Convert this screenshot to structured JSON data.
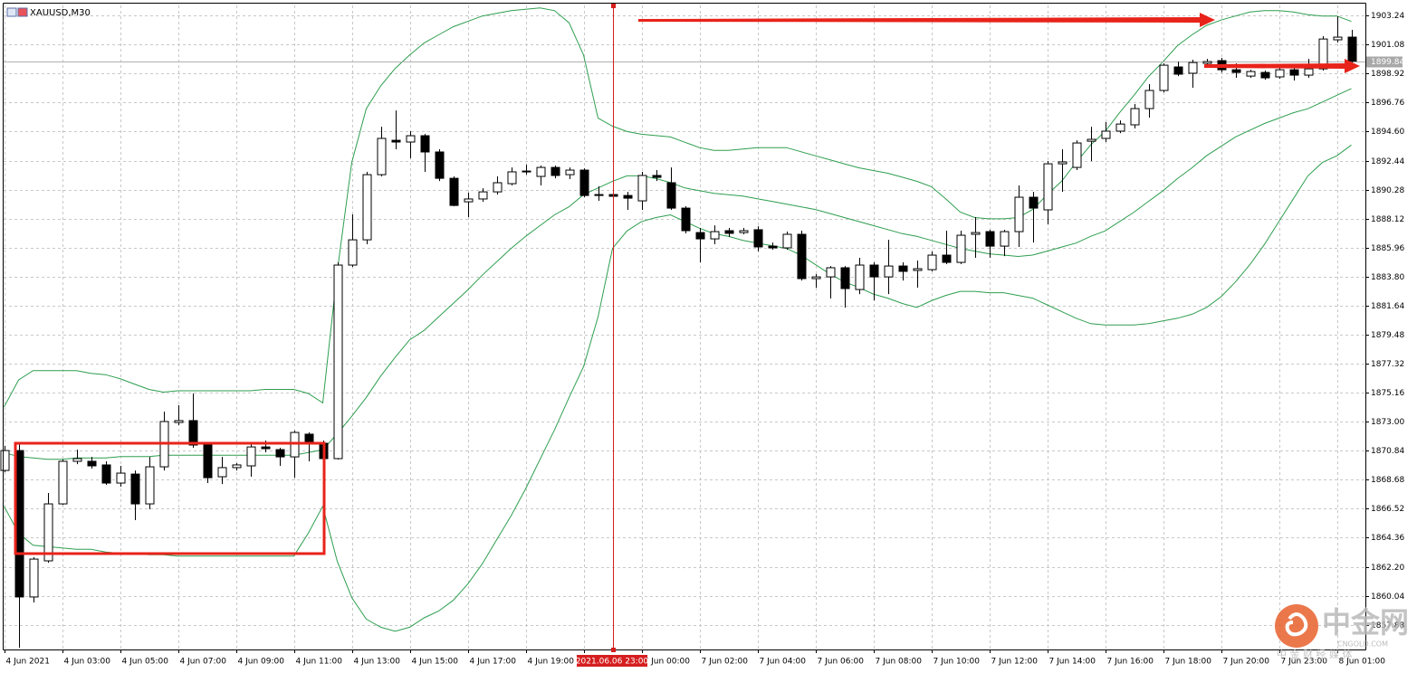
{
  "chart_data": {
    "type": "candlestick",
    "title": "XAUUSD,M30",
    "categories": [
      "4 Jun 2021",
      null,
      null,
      null,
      "4 Jun 03:00",
      null,
      null,
      null,
      "4 Jun 05:00",
      null,
      null,
      null,
      "4 Jun 07:00",
      null,
      null,
      null,
      "4 Jun 09:00",
      null,
      null,
      null,
      "4 Jun 11:00",
      null,
      null,
      null,
      "4 Jun 13:00",
      null,
      null,
      null,
      "4 Jun 15:00",
      null,
      null,
      null,
      "4 Jun 17:00",
      null,
      null,
      null,
      "4 Jun 19:00",
      null,
      null,
      null,
      null,
      null,
      null,
      null,
      "7 Jun 00:00",
      null,
      null,
      null,
      "7 Jun 02:00",
      null,
      null,
      null,
      "7 Jun 04:00",
      null,
      null,
      null,
      "7 Jun 06:00",
      null,
      null,
      null,
      "7 Jun 08:00",
      null,
      null,
      null,
      "7 Jun 10:00",
      null,
      null,
      null,
      "7 Jun 12:00",
      null,
      null,
      null,
      "7 Jun 14:00",
      null,
      null,
      null,
      "7 Jun 16:00",
      null,
      null,
      null,
      "7 Jun 18:00",
      null,
      null,
      null,
      "7 Jun 20:00",
      null,
      null,
      null,
      "7 Jun 23:00",
      null,
      null,
      null,
      "8 Jun 01:00",
      null
    ],
    "open": [
      1869.37,
      1870.85,
      1859.95,
      1862.64,
      1866.88,
      1870.05,
      1870.05,
      1869.78,
      1868.43,
      1869.1,
      1866.88,
      1869.64,
      1872.94,
      1873.08,
      1871.26,
      1868.9,
      1869.58,
      1869.71,
      1871.12,
      1870.92,
      1870.38,
      1872.07,
      1871.39,
      1870.25,
      1884.66,
      1886.54,
      1891.39,
      1893.95,
      1893.82,
      1894.29,
      1893.08,
      1891.12,
      1889.37,
      1889.58,
      1890.11,
      1890.72,
      1891.6,
      1891.26,
      1891.93,
      1891.39,
      1891.73,
      1889.84,
      1889.91,
      1889.84,
      1889.44,
      1891.33,
      1890.79,
      1888.9,
      1887.08,
      1886.61,
      1887.22,
      1887.08,
      1887.29,
      1886.07,
      1885.94,
      1886.95,
      1883.65,
      1883.78,
      1884.46,
      1882.84,
      1884.66,
      1883.78,
      1884.59,
      1884.26,
      1884.32,
      1885.4,
      1884.86,
      1886.95,
      1887.15,
      1886.07,
      1887.15,
      1889.71,
      1888.77,
      1892.2,
      1891.93,
      1893.88,
      1894.09,
      1894.63,
      1895.1,
      1896.31,
      1897.66,
      1899.41,
      1898.94,
      1899.68,
      1899.88,
      1899.2,
      1898.73,
      1899.0,
      1898.67,
      1899.2,
      1898.8,
      1899.27,
      1901.43,
      1901.63
    ],
    "high": [
      1871.19,
      1871.39,
      1862.91,
      1867.69,
      1870.18,
      1870.92,
      1870.38,
      1870.05,
      1869.71,
      1869.37,
      1870.38,
      1873.75,
      1874.22,
      1875.1,
      1871.39,
      1870.38,
      1869.91,
      1871.39,
      1871.6,
      1871.06,
      1872.34,
      1872.2,
      1871.6,
      1884.86,
      1888.43,
      1891.6,
      1894.96,
      1896.17,
      1894.63,
      1894.42,
      1893.28,
      1891.26,
      1890.05,
      1890.38,
      1891.26,
      1891.93,
      1892.13,
      1892.07,
      1892.07,
      1891.93,
      1891.86,
      1890.52,
      1889.98,
      1890.11,
      1891.6,
      1891.73,
      1891.93,
      1889.04,
      1887.42,
      1887.62,
      1887.42,
      1887.42,
      1887.55,
      1886.34,
      1887.15,
      1887.22,
      1883.99,
      1884.59,
      1884.59,
      1885.2,
      1884.86,
      1886.54,
      1884.86,
      1885.0,
      1885.67,
      1887.22,
      1887.22,
      1888.23,
      1887.29,
      1887.29,
      1890.59,
      1890.11,
      1892.4,
      1893.28,
      1893.95,
      1894.96,
      1895.3,
      1895.43,
      1896.65,
      1898.13,
      1899.68,
      1899.81,
      1899.95,
      1900.01,
      1900.08,
      1899.68,
      1899.2,
      1899.14,
      1899.41,
      1899.34,
      1900.01,
      1901.7,
      1903.18,
      1902.17
    ],
    "low": [
      1869.24,
      1856.17,
      1859.54,
      1862.5,
      1866.81,
      1869.84,
      1869.51,
      1868.3,
      1868.16,
      1865.67,
      1866.48,
      1869.37,
      1872.74,
      1871.06,
      1868.43,
      1868.36,
      1869.37,
      1868.9,
      1870.72,
      1869.71,
      1868.83,
      1870.05,
      1869.04,
      1870.18,
      1884.52,
      1886.21,
      1891.26,
      1893.28,
      1892.61,
      1891.6,
      1890.92,
      1889.04,
      1888.23,
      1889.37,
      1889.91,
      1890.59,
      1891.39,
      1890.59,
      1891.12,
      1891.06,
      1889.71,
      1889.44,
      1889.58,
      1888.77,
      1888.77,
      1890.92,
      1888.77,
      1887.02,
      1884.86,
      1886.21,
      1886.75,
      1886.95,
      1885.67,
      1885.8,
      1885.8,
      1883.51,
      1882.98,
      1882.17,
      1881.49,
      1882.5,
      1882.03,
      1882.5,
      1883.51,
      1882.98,
      1884.19,
      1884.73,
      1884.73,
      1885.2,
      1885.2,
      1885.33,
      1886.01,
      1886.34,
      1887.69,
      1890.11,
      1891.73,
      1892.4,
      1893.82,
      1894.49,
      1894.83,
      1895.64,
      1897.52,
      1898.73,
      1897.86,
      1899.34,
      1899.0,
      1898.6,
      1898.6,
      1898.46,
      1898.53,
      1898.4,
      1898.6,
      1899.14,
      1901.23,
      1899.74
    ],
    "close": [
      1870.85,
      1859.95,
      1862.77,
      1866.88,
      1870.05,
      1870.25,
      1869.71,
      1868.43,
      1869.17,
      1866.88,
      1869.64,
      1873.01,
      1873.08,
      1871.26,
      1868.83,
      1869.58,
      1869.78,
      1871.12,
      1870.99,
      1870.38,
      1872.2,
      1871.39,
      1870.25,
      1884.66,
      1886.54,
      1891.39,
      1894.09,
      1893.82,
      1894.29,
      1893.08,
      1891.12,
      1889.1,
      1889.58,
      1890.11,
      1890.79,
      1891.6,
      1891.66,
      1891.93,
      1891.33,
      1891.73,
      1889.84,
      1889.91,
      1889.78,
      1889.64,
      1891.33,
      1891.19,
      1888.9,
      1887.22,
      1886.61,
      1887.15,
      1887.02,
      1887.22,
      1886.01,
      1885.94,
      1886.95,
      1883.65,
      1883.78,
      1884.46,
      1882.91,
      1884.66,
      1883.78,
      1884.59,
      1884.19,
      1884.39,
      1885.4,
      1884.86,
      1886.88,
      1887.08,
      1886.07,
      1887.15,
      1889.71,
      1888.9,
      1892.2,
      1892.34,
      1893.75,
      1894.02,
      1894.63,
      1895.16,
      1896.31,
      1897.66,
      1899.54,
      1898.87,
      1899.74,
      1899.81,
      1899.2,
      1899.0,
      1899.07,
      1898.6,
      1899.2,
      1898.8,
      1899.27,
      1901.49,
      1901.63,
      1899.84
    ],
    "up_color": "#ffffff",
    "down_color": "#000000",
    "bands": [
      {
        "color": "#2e9e4f",
        "values": [
          1874.1,
          1876.1,
          1876.8,
          1876.8,
          1876.8,
          1876.8,
          1876.6,
          1876.5,
          1876.2,
          1875.8,
          1875.4,
          1875.2,
          1875.3,
          1875.3,
          1875.3,
          1875.3,
          1875.3,
          1875.3,
          1875.4,
          1875.4,
          1875.4,
          1875.1,
          1874.4,
          1884.2,
          1892.3,
          1896.3,
          1898.0,
          1899.3,
          1900.3,
          1901.2,
          1901.8,
          1902.4,
          1902.8,
          1903.2,
          1903.4,
          1903.6,
          1903.7,
          1903.8,
          1903.6,
          1902.7,
          1900.3,
          1895.6,
          1895.0,
          1894.6,
          1894.4,
          1894.3,
          1894.2,
          1893.8,
          1893.4,
          1893.2,
          1893.2,
          1893.3,
          1893.4,
          1893.4,
          1893.4,
          1893.1,
          1892.8,
          1892.5,
          1892.2,
          1891.9,
          1891.7,
          1891.5,
          1891.2,
          1890.9,
          1890.5,
          1889.6,
          1888.6,
          1888.2,
          1888.1,
          1888.1,
          1888.2,
          1888.8,
          1889.9,
          1890.9,
          1892.3,
          1893.6,
          1894.6,
          1896.0,
          1897.3,
          1898.7,
          1899.8,
          1901.0,
          1901.8,
          1902.5,
          1902.9,
          1903.2,
          1903.5,
          1903.6,
          1903.6,
          1903.5,
          1903.3,
          1903.2,
          1903.2,
          1902.8
        ]
      },
      {
        "color": "#2e9e4f",
        "values": [
          1870.7,
          1870.4,
          1870.3,
          1870.2,
          1870.2,
          1870.3,
          1870.3,
          1870.3,
          1870.4,
          1870.4,
          1870.4,
          1870.5,
          1870.5,
          1870.5,
          1870.5,
          1870.5,
          1870.5,
          1870.5,
          1870.5,
          1870.5,
          1870.5,
          1870.7,
          1870.9,
          1872.1,
          1873.4,
          1874.8,
          1876.4,
          1877.8,
          1879.1,
          1879.8,
          1880.8,
          1881.8,
          1882.8,
          1883.9,
          1884.9,
          1885.9,
          1886.8,
          1887.6,
          1888.4,
          1889.0,
          1889.9,
          1890.4,
          1890.9,
          1891.3,
          1891.3,
          1891.1,
          1890.8,
          1890.4,
          1890.2,
          1890.0,
          1889.9,
          1889.8,
          1889.6,
          1889.4,
          1889.2,
          1889.0,
          1888.8,
          1888.5,
          1888.2,
          1887.9,
          1887.6,
          1887.3,
          1887.0,
          1886.8,
          1886.5,
          1886.2,
          1885.9,
          1885.7,
          1885.5,
          1885.4,
          1885.3,
          1885.4,
          1885.7,
          1886.0,
          1886.3,
          1886.8,
          1887.2,
          1887.9,
          1888.6,
          1889.4,
          1890.2,
          1891.1,
          1891.9,
          1892.8,
          1893.5,
          1894.2,
          1894.7,
          1895.2,
          1895.6,
          1896.0,
          1896.3,
          1896.8,
          1897.3,
          1897.8
        ]
      },
      {
        "color": "#2e9e4f",
        "values": [
          1866.7,
          1864.7,
          1863.8,
          1863.7,
          1863.6,
          1863.5,
          1863.5,
          1863.3,
          1863.2,
          1863.2,
          1863.1,
          1863.1,
          1863.0,
          1863.0,
          1863.0,
          1863.0,
          1863.0,
          1863.0,
          1863.0,
          1863.0,
          1863.0,
          1864.7,
          1866.7,
          1862.6,
          1859.9,
          1858.3,
          1857.7,
          1857.4,
          1857.7,
          1858.4,
          1858.9,
          1859.7,
          1860.9,
          1862.4,
          1864.2,
          1866.0,
          1868.0,
          1870.2,
          1872.4,
          1874.8,
          1877.1,
          1880.8,
          1885.9,
          1887.2,
          1887.9,
          1888.2,
          1888.4,
          1887.9,
          1887.4,
          1887.0,
          1886.8,
          1886.5,
          1886.3,
          1886.1,
          1885.9,
          1885.4,
          1884.7,
          1884.0,
          1883.4,
          1883.0,
          1882.5,
          1882.2,
          1881.8,
          1881.5,
          1882.0,
          1882.4,
          1882.7,
          1882.7,
          1882.6,
          1882.6,
          1882.4,
          1882.2,
          1881.7,
          1881.2,
          1880.7,
          1880.3,
          1880.2,
          1880.2,
          1880.2,
          1880.3,
          1880.5,
          1880.7,
          1881.0,
          1881.5,
          1882.3,
          1883.4,
          1884.7,
          1886.2,
          1887.9,
          1889.6,
          1891.3,
          1892.3,
          1892.8,
          1893.6
        ]
      }
    ],
    "ylim": [
      1856.04,
      1903.99
    ],
    "yticks": [
      1903.24,
      1901.08,
      1898.92,
      1896.76,
      {
        "value": 1894.6,
        "label": "1894.60"
      },
      1892.44,
      1890.28,
      1888.12,
      1885.96,
      {
        "value": 1883.8,
        "label": "1883.80"
      },
      1881.64,
      1879.48,
      1877.32,
      1875.16,
      {
        "value": 1873,
        "label": "1873.00"
      },
      1870.84,
      1868.68,
      1866.52,
      1864.36,
      {
        "value": 1862.2,
        "label": "1862.20"
      },
      1860.04,
      1857.88
    ],
    "grid": true,
    "current_price": 1899.84,
    "current_price_label": "1899.84",
    "crosshair_label": "2021.06.06 23:00",
    "watermark": {
      "name": "中金网",
      "site": "CNGOLD.COM",
      "tagline": "中 金 财 经 媒 体"
    }
  }
}
